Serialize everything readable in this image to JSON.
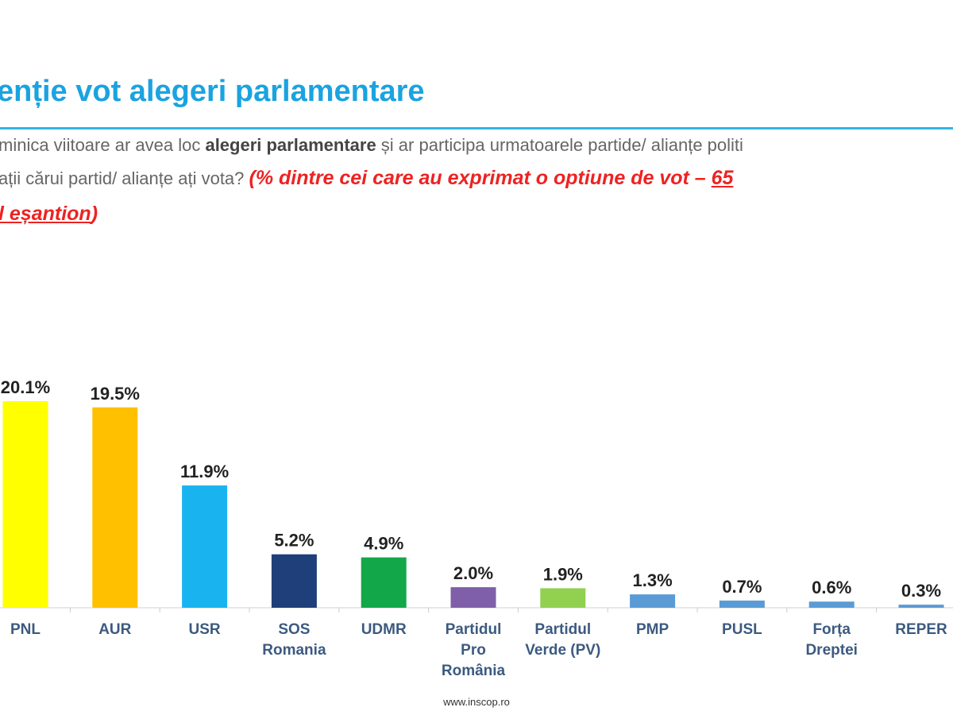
{
  "header": {
    "title": "enție vot alegeri parlamentare",
    "q1_a": "minica viitoare ar avea loc ",
    "q1_b": "alegeri parlamentare",
    "q1_c": " și ar participa urmatoarele partide/ alianțe politi",
    "q2_a": "ații cărui partid/ alianțe ați vota?  ",
    "q2_red": "(% dintre cei care au exprimat o optiune de vot – ",
    "q2_red_u": "65",
    "q3_red_u": "l eșantion",
    "q3_red": ")"
  },
  "chart_data": {
    "type": "bar",
    "categories": [
      [
        "PNL"
      ],
      [
        "AUR"
      ],
      [
        "USR"
      ],
      [
        "SOS",
        "Romania"
      ],
      [
        "UDMR"
      ],
      [
        "Partidul",
        "Pro",
        "România"
      ],
      [
        "Partidul",
        "Verde (PV)"
      ],
      [
        "PMP"
      ],
      [
        "PUSL"
      ],
      [
        "Forța",
        "Dreptei"
      ],
      [
        "REPER"
      ]
    ],
    "values": [
      20.1,
      19.5,
      11.9,
      5.2,
      4.9,
      2.0,
      1.9,
      1.3,
      0.7,
      0.6,
      0.3
    ],
    "labels": [
      "20.1%",
      "19.5%",
      "11.9%",
      "5.2%",
      "4.9%",
      "2.0%",
      "1.9%",
      "1.3%",
      "0.7%",
      "0.6%",
      "0.3%"
    ],
    "colors": [
      "#ffff00",
      "#ffc000",
      "#19b4f0",
      "#1f3f7a",
      "#12a84a",
      "#7f5fa8",
      "#92d050",
      "#5b9bd5",
      "#5b9bd5",
      "#5b9bd5",
      "#5b9bd5"
    ],
    "ylim": [
      0,
      22
    ],
    "xlabel": "",
    "ylabel": ""
  },
  "footer": {
    "source": "www.inscop.ro"
  }
}
